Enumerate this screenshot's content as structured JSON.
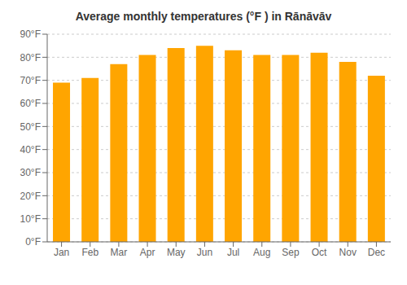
{
  "chart_data": {
    "type": "bar",
    "title": "Average monthly temperatures (°F ) in Rānāvāv",
    "categories": [
      "Jan",
      "Feb",
      "Mar",
      "Apr",
      "May",
      "Jun",
      "Jul",
      "Aug",
      "Sep",
      "Oct",
      "Nov",
      "Dec"
    ],
    "values": [
      69,
      71,
      77,
      81,
      84,
      85,
      83,
      81,
      81,
      82,
      78,
      72
    ],
    "color": "#FFA500",
    "ylim": [
      0,
      90
    ],
    "yticks": [
      {
        "value": 0,
        "label": "0°F"
      },
      {
        "value": 10,
        "label": "10°F"
      },
      {
        "value": 20,
        "label": "20°F"
      },
      {
        "value": 30,
        "label": "30°F"
      },
      {
        "value": 40,
        "label": "40°F"
      },
      {
        "value": 50,
        "label": "50°F"
      },
      {
        "value": 60,
        "label": "60°F"
      },
      {
        "value": 70,
        "label": "70°F"
      },
      {
        "value": 80,
        "label": "80°F"
      },
      {
        "value": 90,
        "label": "90°F"
      }
    ],
    "grid": true
  }
}
